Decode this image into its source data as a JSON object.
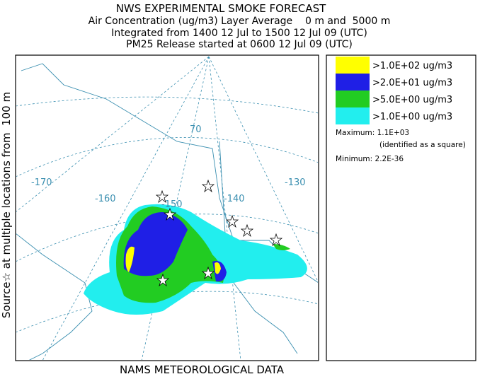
{
  "header": {
    "title": "NWS EXPERIMENTAL SMOKE FORECAST",
    "lines": [
      "Air Concentration (ug/m3) Layer Average    0 m and  5000 m",
      "Integrated from 1400 12 Jul to 1500 12 Jul 09 (UTC)",
      "PM25 Release started at 0600 12 Jul 09 (UTC)"
    ]
  },
  "side_label": "Source☆ at multiple locations from  100 m",
  "footer": "NAMS METEOROLOGICAL DATA",
  "map": {
    "labels": [
      "-170",
      "-160",
      "-150",
      "-140",
      "-130",
      "70"
    ]
  },
  "legend": {
    "entries": [
      {
        "label": ">1.0E+02 ug/m3",
        "color": "#ffff00"
      },
      {
        "label": ">2.0E+01 ug/m3",
        "color": "#1f1fe6"
      },
      {
        "label": ">5.0E+00 ug/m3",
        "color": "#22cc22"
      },
      {
        "label": ">1.0E+00 ug/m3",
        "color": "#22eeee"
      }
    ],
    "maximum": "Maximum: 1.1E+03",
    "maximum_note": "(identified as a square)",
    "minimum": "Minimum: 2.2E-36"
  }
}
